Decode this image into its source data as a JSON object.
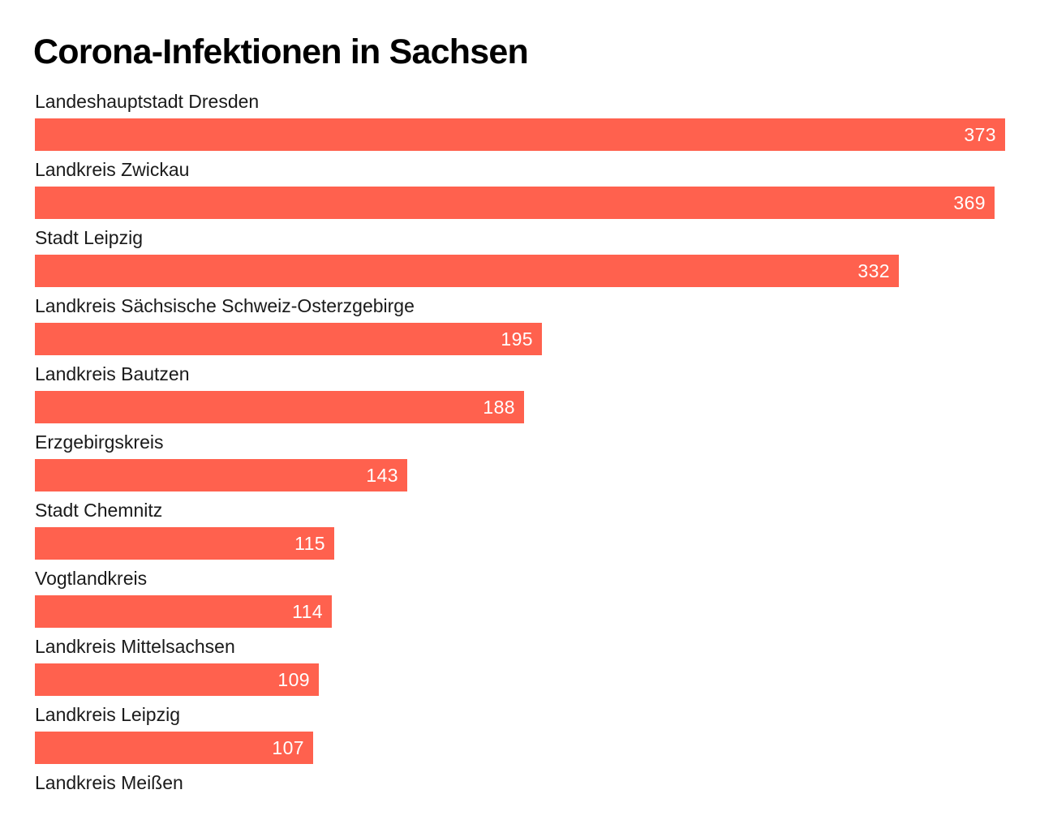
{
  "chart_data": {
    "type": "bar",
    "orientation": "horizontal",
    "title": "Corona-Infektionen in Sachsen",
    "categories": [
      "Landeshauptstadt Dresden",
      "Landkreis Zwickau",
      "Stadt Leipzig",
      "Landkreis Sächsische Schweiz-Osterzgebirge",
      "Landkreis Bautzen",
      "Erzgebirgskreis",
      "Stadt Chemnitz",
      "Vogtlandkreis",
      "Landkreis Mittelsachsen",
      "Landkreis Leipzig",
      "Landkreis Meißen"
    ],
    "values": [
      373,
      369,
      332,
      195,
      188,
      143,
      115,
      114,
      109,
      107,
      null
    ],
    "xlim": [
      0,
      373
    ],
    "grid": false,
    "bar_color": "#ff614e",
    "value_label_color": "#ffffff"
  }
}
